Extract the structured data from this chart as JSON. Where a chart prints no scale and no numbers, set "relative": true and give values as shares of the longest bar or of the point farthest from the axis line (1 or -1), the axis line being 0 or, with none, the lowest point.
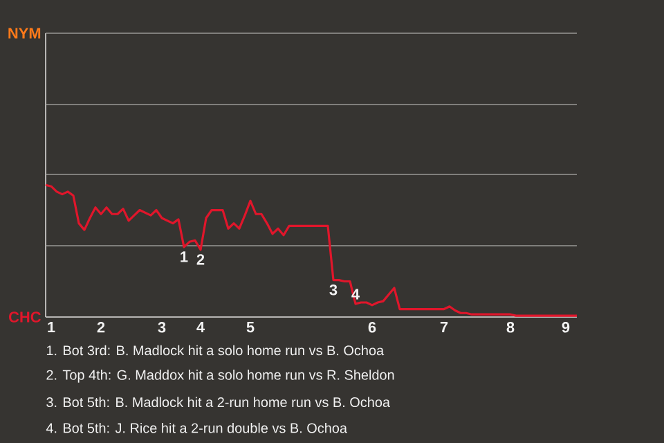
{
  "chart_data": {
    "type": "line",
    "relative": true,
    "categories": [
      null,
      "1",
      null,
      null,
      null,
      null,
      null,
      null,
      null,
      null,
      "2",
      null,
      null,
      null,
      null,
      null,
      null,
      null,
      null,
      null,
      null,
      "3",
      null,
      null,
      null,
      null,
      null,
      null,
      "4",
      null,
      null,
      null,
      null,
      null,
      null,
      null,
      null,
      "5",
      null,
      null,
      null,
      null,
      null,
      null,
      null,
      null,
      null,
      null,
      null,
      null,
      null,
      null,
      null,
      null,
      null,
      null,
      null,
      null,
      null,
      "6",
      null,
      null,
      null,
      null,
      null,
      null,
      null,
      null,
      null,
      null,
      null,
      null,
      "7",
      null,
      null,
      null,
      null,
      null,
      null,
      null,
      null,
      null,
      null,
      null,
      "8",
      null,
      null,
      null,
      null,
      null,
      null,
      null,
      null,
      null,
      "9",
      null,
      null
    ],
    "series": [
      {
        "color": "#e0162b",
        "values": [
          1,
          0.99,
          0.95,
          0.93,
          0.95,
          0.92,
          0.71,
          0.66,
          0.75,
          0.83,
          0.78,
          0.83,
          0.78,
          0.78,
          0.82,
          0.73,
          0.77,
          0.81,
          0.79,
          0.77,
          0.81,
          0.75,
          0.73,
          0.71,
          0.74,
          0.53,
          0.57,
          0.58,
          0.51,
          0.75,
          0.81,
          0.81,
          0.81,
          0.67,
          0.71,
          0.67,
          0.77,
          0.88,
          0.78,
          0.78,
          0.71,
          0.63,
          0.67,
          0.62,
          0.69,
          0.69,
          0.69,
          0.69,
          0.69,
          0.69,
          0.69,
          0.69,
          0.28,
          0.28,
          0.27,
          0.27,
          0.1,
          0.11,
          0.11,
          0.09,
          0.11,
          0.12,
          0.17,
          0.22,
          0.06,
          0.06,
          0.06,
          0.06,
          0.06,
          0.06,
          0.06,
          0.06,
          0.06,
          0.08,
          0.05,
          0.03,
          0.03,
          0.02,
          0.02,
          0.02,
          0.02,
          0.02,
          0.02,
          0.02,
          0.02,
          0.01,
          0.01,
          0.01,
          0.01,
          0.01,
          0.01,
          0.01,
          0.01,
          0.01,
          0.01,
          0.01,
          0.01
        ]
      }
    ],
    "ref_lines": [
      {
        "axis": "y",
        "value": 0.54,
        "color": "#9a9896"
      },
      {
        "axis": "y",
        "value": 1.08,
        "color": "#9a9896"
      },
      {
        "axis": "y",
        "value": 1.61,
        "color": "#9a9896"
      },
      {
        "axis": "y",
        "value": 2.15,
        "color": "#9a9896"
      }
    ],
    "annotations": [
      "NYM",
      "CHC",
      {
        "text": "1",
        "y": 0.53
      },
      {
        "text": "2",
        "y": 0.51
      },
      {
        "text": "3",
        "y": 0.28
      },
      {
        "text": "4",
        "y": 0.1
      },
      "1. Bot 3rd: B. Madlock hit a solo home run vs B. Ochoa",
      "2. Top 4th: G. Maddox hit a solo home run vs R. Sheldon",
      "3. Bot 5th: B. Madlock hit a 2-run home run vs B. Ochoa",
      "4. Bot 5th: J. Rice hit a 2-run double vs B. Ochoa"
    ]
  }
}
